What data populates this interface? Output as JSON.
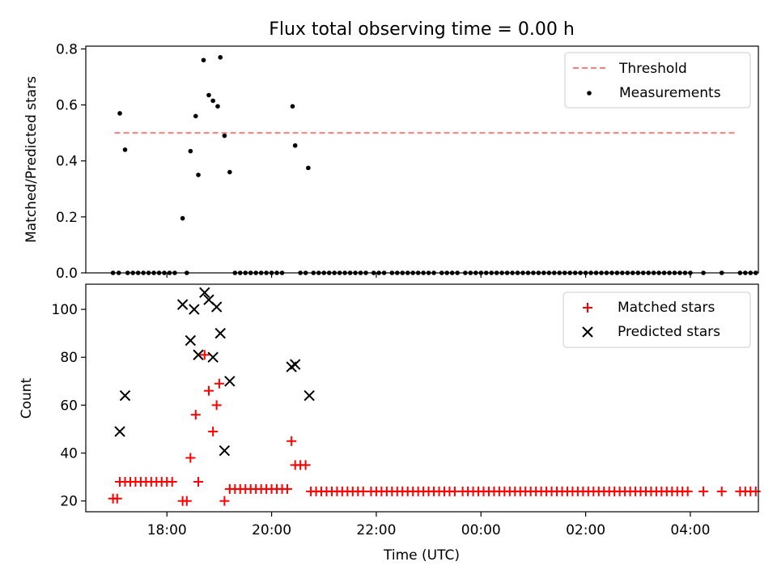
{
  "chart_data": [
    {
      "type": "scatter",
      "title": "Flux total observing time = 0.00 h",
      "ylabel": "Matched/Predicted stars",
      "xlabel": "",
      "xlim": [
        16.45,
        29.3
      ],
      "ylim": [
        0,
        0.81
      ],
      "yticks": [
        0,
        0.2,
        0.4,
        0.6,
        0.8
      ],
      "ytick_labels": [
        "0.0",
        "0.2",
        "0.4",
        "0.6",
        "0.8"
      ],
      "legend": "top-right",
      "series": [
        {
          "name": "Threshold",
          "kind": "dashed-line",
          "color": "#ff7f7f",
          "points": [
            [
              17.0,
              0.5
            ],
            [
              28.9,
              0.5
            ]
          ]
        },
        {
          "name": "Measurements",
          "kind": "dot",
          "color": "#000000",
          "points": [
            [
              17.1,
              0.57
            ],
            [
              17.2,
              0.44
            ],
            [
              18.3,
              0.195
            ],
            [
              18.45,
              0.435
            ],
            [
              18.55,
              0.56
            ],
            [
              18.6,
              0.35
            ],
            [
              18.7,
              0.76
            ],
            [
              18.8,
              0.635
            ],
            [
              18.88,
              0.615
            ],
            [
              18.97,
              0.595
            ],
            [
              19.02,
              0.77
            ],
            [
              19.1,
              0.49
            ],
            [
              19.2,
              0.36
            ],
            [
              20.4,
              0.595
            ],
            [
              20.45,
              0.455
            ],
            [
              20.7,
              0.375
            ],
            [
              16.97,
              0.0
            ],
            [
              17.08,
              0.0
            ],
            [
              17.25,
              0.0
            ],
            [
              17.35,
              0.0
            ],
            [
              17.45,
              0.0
            ],
            [
              17.55,
              0.0
            ],
            [
              17.65,
              0.0
            ],
            [
              17.75,
              0.0
            ],
            [
              17.85,
              0.0
            ],
            [
              17.95,
              0.0
            ],
            [
              18.05,
              0.0
            ],
            [
              18.15,
              0.0
            ],
            [
              18.38,
              0.0
            ],
            [
              19.3,
              0.0
            ],
            [
              19.4,
              0.0
            ],
            [
              19.5,
              0.0
            ],
            [
              19.6,
              0.0
            ],
            [
              19.7,
              0.0
            ],
            [
              19.8,
              0.0
            ],
            [
              19.9,
              0.0
            ],
            [
              20.0,
              0.0
            ],
            [
              20.1,
              0.0
            ],
            [
              20.2,
              0.0
            ],
            [
              20.55,
              0.0
            ],
            [
              20.65,
              0.0
            ],
            [
              20.8,
              0.0
            ],
            [
              20.9,
              0.0
            ],
            [
              21.0,
              0.0
            ],
            [
              21.1,
              0.0
            ],
            [
              21.2,
              0.0
            ],
            [
              21.3,
              0.0
            ],
            [
              21.4,
              0.0
            ],
            [
              21.5,
              0.0
            ],
            [
              21.6,
              0.0
            ],
            [
              21.7,
              0.0
            ],
            [
              21.8,
              0.0
            ],
            [
              21.95,
              0.0
            ],
            [
              22.05,
              0.0
            ],
            [
              22.15,
              0.0
            ],
            [
              22.3,
              0.0
            ],
            [
              22.4,
              0.0
            ],
            [
              22.5,
              0.0
            ],
            [
              22.6,
              0.0
            ],
            [
              22.7,
              0.0
            ],
            [
              22.8,
              0.0
            ],
            [
              22.9,
              0.0
            ],
            [
              23.0,
              0.0
            ],
            [
              23.1,
              0.0
            ],
            [
              23.25,
              0.0
            ],
            [
              23.35,
              0.0
            ],
            [
              23.45,
              0.0
            ],
            [
              23.55,
              0.0
            ],
            [
              23.7,
              0.0
            ],
            [
              23.8,
              0.0
            ],
            [
              23.9,
              0.0
            ],
            [
              24.0,
              0.0
            ],
            [
              24.1,
              0.0
            ],
            [
              24.2,
              0.0
            ],
            [
              24.3,
              0.0
            ],
            [
              24.4,
              0.0
            ],
            [
              24.5,
              0.0
            ],
            [
              24.6,
              0.0
            ],
            [
              24.7,
              0.0
            ],
            [
              24.8,
              0.0
            ],
            [
              24.9,
              0.0
            ],
            [
              25.0,
              0.0
            ],
            [
              25.1,
              0.0
            ],
            [
              25.2,
              0.0
            ],
            [
              25.3,
              0.0
            ],
            [
              25.4,
              0.0
            ],
            [
              25.5,
              0.0
            ],
            [
              25.6,
              0.0
            ],
            [
              25.7,
              0.0
            ],
            [
              25.8,
              0.0
            ],
            [
              25.9,
              0.0
            ],
            [
              26.0,
              0.0
            ],
            [
              26.1,
              0.0
            ],
            [
              26.2,
              0.0
            ],
            [
              26.3,
              0.0
            ],
            [
              26.4,
              0.0
            ],
            [
              26.5,
              0.0
            ],
            [
              26.6,
              0.0
            ],
            [
              26.7,
              0.0
            ],
            [
              26.8,
              0.0
            ],
            [
              26.9,
              0.0
            ],
            [
              27.0,
              0.0
            ],
            [
              27.1,
              0.0
            ],
            [
              27.2,
              0.0
            ],
            [
              27.3,
              0.0
            ],
            [
              27.4,
              0.0
            ],
            [
              27.5,
              0.0
            ],
            [
              27.6,
              0.0
            ],
            [
              27.7,
              0.0
            ],
            [
              27.8,
              0.0
            ],
            [
              27.9,
              0.0
            ],
            [
              28.0,
              0.0
            ],
            [
              28.25,
              0.0
            ],
            [
              28.6,
              0.0
            ],
            [
              28.95,
              0.0
            ],
            [
              29.05,
              0.0
            ],
            [
              29.15,
              0.0
            ],
            [
              29.25,
              0.0
            ]
          ]
        }
      ]
    },
    {
      "type": "scatter",
      "title": "",
      "xlabel": "Time (UTC)",
      "ylabel": "Count",
      "xlim": [
        16.45,
        29.3
      ],
      "ylim": [
        15.5,
        110.5
      ],
      "xticks": [
        18,
        20,
        22,
        24,
        26,
        28
      ],
      "xtick_labels": [
        "18:00",
        "20:00",
        "22:00",
        "00:00",
        "02:00",
        "04:00"
      ],
      "yticks": [
        20,
        40,
        60,
        80,
        100
      ],
      "ytick_labels": [
        "20",
        "40",
        "60",
        "80",
        "100"
      ],
      "legend": "top-right",
      "series": [
        {
          "name": "Matched stars",
          "marker": "plus",
          "color": "#ff0000",
          "points": [
            [
              16.97,
              21
            ],
            [
              17.05,
              21
            ],
            [
              17.1,
              28
            ],
            [
              17.2,
              28
            ],
            [
              17.3,
              28
            ],
            [
              17.4,
              28
            ],
            [
              17.5,
              28
            ],
            [
              17.6,
              28
            ],
            [
              17.7,
              28
            ],
            [
              17.8,
              28
            ],
            [
              17.9,
              28
            ],
            [
              18.0,
              28
            ],
            [
              18.1,
              28
            ],
            [
              18.3,
              20
            ],
            [
              18.38,
              20
            ],
            [
              18.45,
              38
            ],
            [
              18.55,
              56
            ],
            [
              18.6,
              28
            ],
            [
              18.72,
              81
            ],
            [
              18.8,
              66
            ],
            [
              18.88,
              49
            ],
            [
              18.95,
              60
            ],
            [
              19.0,
              69
            ],
            [
              19.1,
              20
            ],
            [
              19.2,
              25
            ],
            [
              19.3,
              25
            ],
            [
              19.4,
              25
            ],
            [
              19.5,
              25
            ],
            [
              19.6,
              25
            ],
            [
              19.7,
              25
            ],
            [
              19.8,
              25
            ],
            [
              19.9,
              25
            ],
            [
              20.0,
              25
            ],
            [
              20.1,
              25
            ],
            [
              20.2,
              25
            ],
            [
              20.3,
              25
            ],
            [
              20.38,
              45
            ],
            [
              20.45,
              35
            ],
            [
              20.55,
              35
            ],
            [
              20.65,
              35
            ],
            [
              20.75,
              24
            ],
            [
              20.85,
              24
            ],
            [
              20.95,
              24
            ],
            [
              21.05,
              24
            ],
            [
              21.15,
              24
            ],
            [
              21.25,
              24
            ],
            [
              21.35,
              24
            ],
            [
              21.45,
              24
            ],
            [
              21.55,
              24
            ],
            [
              21.65,
              24
            ],
            [
              21.75,
              24
            ],
            [
              21.9,
              24
            ],
            [
              22.0,
              24
            ],
            [
              22.1,
              24
            ],
            [
              22.2,
              24
            ],
            [
              22.3,
              24
            ],
            [
              22.4,
              24
            ],
            [
              22.5,
              24
            ],
            [
              22.6,
              24
            ],
            [
              22.7,
              24
            ],
            [
              22.8,
              24
            ],
            [
              22.9,
              24
            ],
            [
              23.0,
              24
            ],
            [
              23.1,
              24
            ],
            [
              23.2,
              24
            ],
            [
              23.3,
              24
            ],
            [
              23.4,
              24
            ],
            [
              23.5,
              24
            ],
            [
              23.65,
              24
            ],
            [
              23.75,
              24
            ],
            [
              23.85,
              24
            ],
            [
              23.95,
              24
            ],
            [
              24.05,
              24
            ],
            [
              24.15,
              24
            ],
            [
              24.25,
              24
            ],
            [
              24.35,
              24
            ],
            [
              24.45,
              24
            ],
            [
              24.55,
              24
            ],
            [
              24.65,
              24
            ],
            [
              24.75,
              24
            ],
            [
              24.85,
              24
            ],
            [
              24.95,
              24
            ],
            [
              25.05,
              24
            ],
            [
              25.15,
              24
            ],
            [
              25.25,
              24
            ],
            [
              25.35,
              24
            ],
            [
              25.45,
              24
            ],
            [
              25.55,
              24
            ],
            [
              25.65,
              24
            ],
            [
              25.75,
              24
            ],
            [
              25.85,
              24
            ],
            [
              25.95,
              24
            ],
            [
              26.05,
              24
            ],
            [
              26.15,
              24
            ],
            [
              26.25,
              24
            ],
            [
              26.35,
              24
            ],
            [
              26.45,
              24
            ],
            [
              26.55,
              24
            ],
            [
              26.65,
              24
            ],
            [
              26.75,
              24
            ],
            [
              26.85,
              24
            ],
            [
              26.95,
              24
            ],
            [
              27.05,
              24
            ],
            [
              27.15,
              24
            ],
            [
              27.25,
              24
            ],
            [
              27.35,
              24
            ],
            [
              27.45,
              24
            ],
            [
              27.55,
              24
            ],
            [
              27.65,
              24
            ],
            [
              27.75,
              24
            ],
            [
              27.85,
              24
            ],
            [
              27.95,
              24
            ],
            [
              28.25,
              24
            ],
            [
              28.6,
              24
            ],
            [
              28.95,
              24
            ],
            [
              29.05,
              24
            ],
            [
              29.15,
              24
            ],
            [
              29.25,
              24
            ]
          ]
        },
        {
          "name": "Predicted stars",
          "marker": "x",
          "color": "#000000",
          "points": [
            [
              17.1,
              49
            ],
            [
              17.2,
              64
            ],
            [
              18.3,
              102
            ],
            [
              18.45,
              87
            ],
            [
              18.52,
              100
            ],
            [
              18.6,
              81
            ],
            [
              18.72,
              107
            ],
            [
              18.8,
              104
            ],
            [
              18.88,
              80
            ],
            [
              18.95,
              101
            ],
            [
              19.02,
              90
            ],
            [
              19.1,
              41
            ],
            [
              19.2,
              70
            ],
            [
              20.38,
              76
            ],
            [
              20.45,
              77
            ],
            [
              20.72,
              64
            ]
          ]
        }
      ]
    }
  ]
}
